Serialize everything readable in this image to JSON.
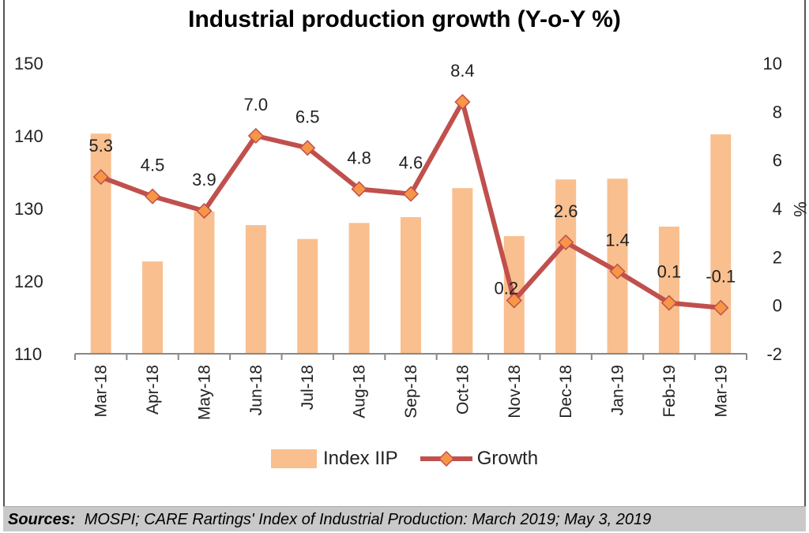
{
  "chart_data": {
    "type": "bar+line",
    "title": "Industrial production growth (Y-o-Y %)",
    "categories": [
      "Mar-18",
      "Apr-18",
      "May-18",
      "Jun-18",
      "Jul-18",
      "Aug-18",
      "Sep-18",
      "Oct-18",
      "Nov-18",
      "Dec-18",
      "Jan-19",
      "Feb-19",
      "Mar-19"
    ],
    "series": [
      {
        "name": "Index IIP",
        "type": "bar",
        "axis": "left",
        "color": "#f9bf8f",
        "values": [
          140.3,
          122.7,
          129.6,
          127.7,
          125.8,
          128.0,
          128.8,
          132.8,
          126.2,
          134.0,
          134.1,
          127.5,
          140.2
        ]
      },
      {
        "name": "Growth",
        "type": "line",
        "axis": "right",
        "color": "#c0504d",
        "marker_color": "#f79646",
        "values": [
          5.3,
          4.5,
          3.9,
          7.0,
          6.5,
          4.8,
          4.6,
          8.4,
          0.2,
          2.6,
          1.4,
          0.1,
          -0.1
        ],
        "labels": [
          "5.3",
          "4.5",
          "3.9",
          "7.0",
          "6.5",
          "4.8",
          "4.6",
          "8.4",
          "0.2",
          "2.6",
          "1.4",
          "0.1",
          "-0.1"
        ]
      }
    ],
    "y_left": {
      "range": [
        110,
        150
      ],
      "ticks": [
        "110",
        "120",
        "130",
        "140",
        "150"
      ]
    },
    "y_right": {
      "range": [
        -2,
        10
      ],
      "ticks": [
        "-2",
        "0",
        "2",
        "4",
        "6",
        "8",
        "10"
      ],
      "label": "%"
    },
    "grid": false,
    "legend": "bottom"
  },
  "footer": {
    "label": "Sources:",
    "text": "MOSPI; CARE Rartings' Index of Industrial Production: March 2019; May 3, 2019"
  }
}
